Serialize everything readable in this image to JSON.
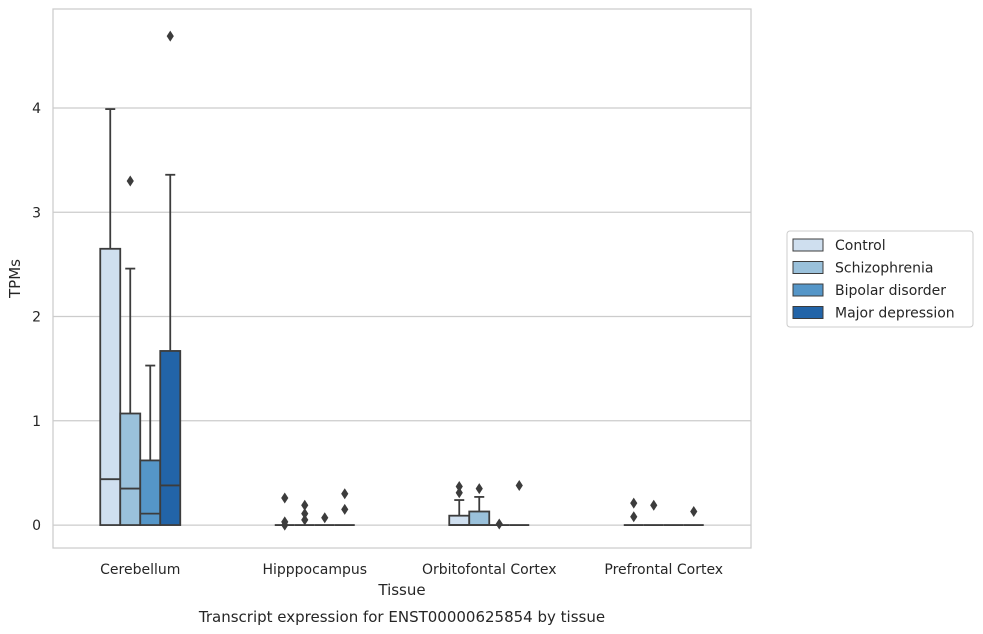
{
  "caption": "Transcript expression for ENST00000625854 by tissue",
  "chart_data": {
    "type": "box",
    "title": "",
    "xlabel": "Tissue",
    "ylabel": "TPMs",
    "ylim": [
      -0.22,
      4.95
    ],
    "yticks": [
      0,
      1,
      2,
      3,
      4
    ],
    "grid": "horizontal",
    "legend_position": "right",
    "categories": [
      "Cerebellum",
      "Hipppocampus",
      "Orbitofontal Cortex",
      "Prefrontal Cortex"
    ],
    "series": [
      {
        "name": "Control",
        "color": "#cfdfef",
        "boxes": [
          {
            "min": 0,
            "q1": 0,
            "median": 0.44,
            "q3": 2.65,
            "max": 3.99,
            "outliers": []
          },
          {
            "min": 0,
            "q1": 0,
            "median": 0,
            "q3": 0,
            "max": 0,
            "outliers": [
              0.0,
              0.03,
              0.26
            ]
          },
          {
            "min": 0,
            "q1": 0,
            "median": 0,
            "q3": 0.09,
            "max": 0.24,
            "outliers": [
              0.31,
              0.37
            ]
          },
          {
            "min": 0,
            "q1": 0,
            "median": 0,
            "q3": 0,
            "max": 0,
            "outliers": [
              0.08,
              0.21
            ]
          }
        ]
      },
      {
        "name": "Schizophrenia",
        "color": "#9ac1db",
        "boxes": [
          {
            "min": 0,
            "q1": 0,
            "median": 0.35,
            "q3": 1.07,
            "max": 2.46,
            "outliers": [
              3.3
            ]
          },
          {
            "min": 0,
            "q1": 0,
            "median": 0,
            "q3": 0,
            "max": 0,
            "outliers": [
              0.05,
              0.11,
              0.19
            ]
          },
          {
            "min": 0,
            "q1": 0,
            "median": 0,
            "q3": 0.13,
            "max": 0.27,
            "outliers": [
              0.35
            ]
          },
          {
            "min": 0,
            "q1": 0,
            "median": 0,
            "q3": 0,
            "max": 0,
            "outliers": [
              0.19
            ]
          }
        ]
      },
      {
        "name": "Bipolar disorder",
        "color": "#5596c8",
        "boxes": [
          {
            "min": 0,
            "q1": 0,
            "median": 0.11,
            "q3": 0.62,
            "max": 1.53,
            "outliers": []
          },
          {
            "min": 0,
            "q1": 0,
            "median": 0,
            "q3": 0,
            "max": 0,
            "outliers": [
              0.07
            ]
          },
          {
            "min": 0,
            "q1": 0,
            "median": 0,
            "q3": 0,
            "max": 0,
            "outliers": [
              0.01
            ]
          },
          {
            "min": 0,
            "q1": 0,
            "median": 0,
            "q3": 0,
            "max": 0,
            "outliers": []
          }
        ]
      },
      {
        "name": "Major depression",
        "color": "#2264a8",
        "boxes": [
          {
            "min": 0,
            "q1": 0,
            "median": 0.38,
            "q3": 1.67,
            "max": 3.36,
            "outliers": [
              4.69
            ]
          },
          {
            "min": 0,
            "q1": 0,
            "median": 0,
            "q3": 0,
            "max": 0,
            "outliers": [
              0.15,
              0.3
            ]
          },
          {
            "min": 0,
            "q1": 0,
            "median": 0,
            "q3": 0,
            "max": 0,
            "outliers": [
              0.38
            ]
          },
          {
            "min": 0,
            "q1": 0,
            "median": 0,
            "q3": 0,
            "max": 0,
            "outliers": [
              0.13
            ]
          }
        ]
      }
    ]
  }
}
